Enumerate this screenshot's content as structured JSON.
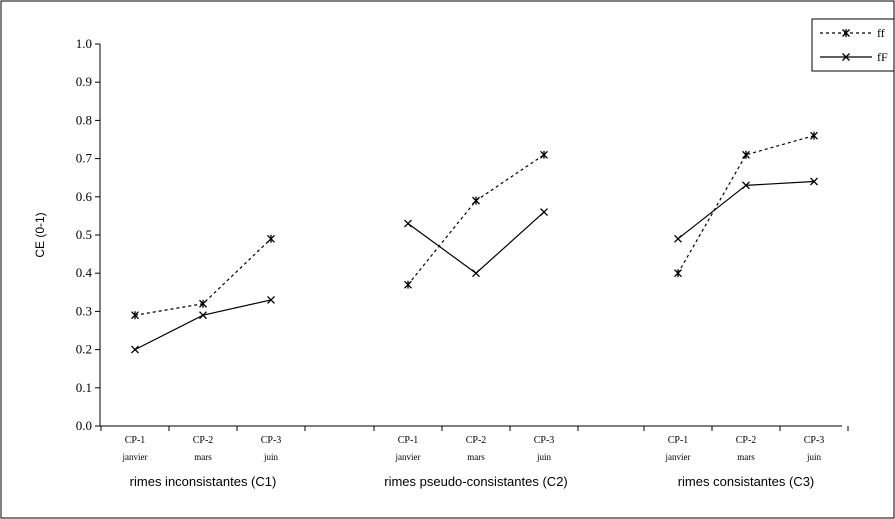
{
  "chart_data": {
    "type": "line",
    "ylabel": "CE (0-1)",
    "ylim": [
      0,
      1
    ],
    "yticks": [
      "0.0",
      "0.1",
      "0.2",
      "0.3",
      "0.4",
      "0.5",
      "0.6",
      "0.7",
      "0.8",
      "0.9",
      "1.0"
    ],
    "grid": false,
    "legend_position": "top-right",
    "groups": [
      {
        "label": "rimes inconsistantes (C1)",
        "categories": [
          {
            "label": "CP-1",
            "sub": "janvier"
          },
          {
            "label": "CP-2",
            "sub": "mars"
          },
          {
            "label": "CP-3",
            "sub": "juin"
          }
        ]
      },
      {
        "label": "rimes pseudo-consistantes (C2)",
        "categories": [
          {
            "label": "CP-1",
            "sub": "janvier"
          },
          {
            "label": "CP-2",
            "sub": "mars"
          },
          {
            "label": "CP-3",
            "sub": "juin"
          }
        ]
      },
      {
        "label": "rimes consistantes (C3)",
        "categories": [
          {
            "label": "CP-1",
            "sub": "janvier"
          },
          {
            "label": "CP-2",
            "sub": "mars"
          },
          {
            "label": "CP-3",
            "sub": "juin"
          }
        ]
      }
    ],
    "series": [
      {
        "name": "ff",
        "style": "dotted",
        "marker": "asterisk",
        "values": [
          [
            0.29,
            0.32,
            0.49
          ],
          [
            0.37,
            0.59,
            0.71
          ],
          [
            0.4,
            0.71,
            0.76
          ]
        ]
      },
      {
        "name": "fF",
        "style": "solid",
        "marker": "x",
        "values": [
          [
            0.2,
            0.29,
            0.33
          ],
          [
            0.53,
            0.4,
            0.56
          ],
          [
            0.49,
            0.63,
            0.64
          ]
        ]
      }
    ]
  }
}
